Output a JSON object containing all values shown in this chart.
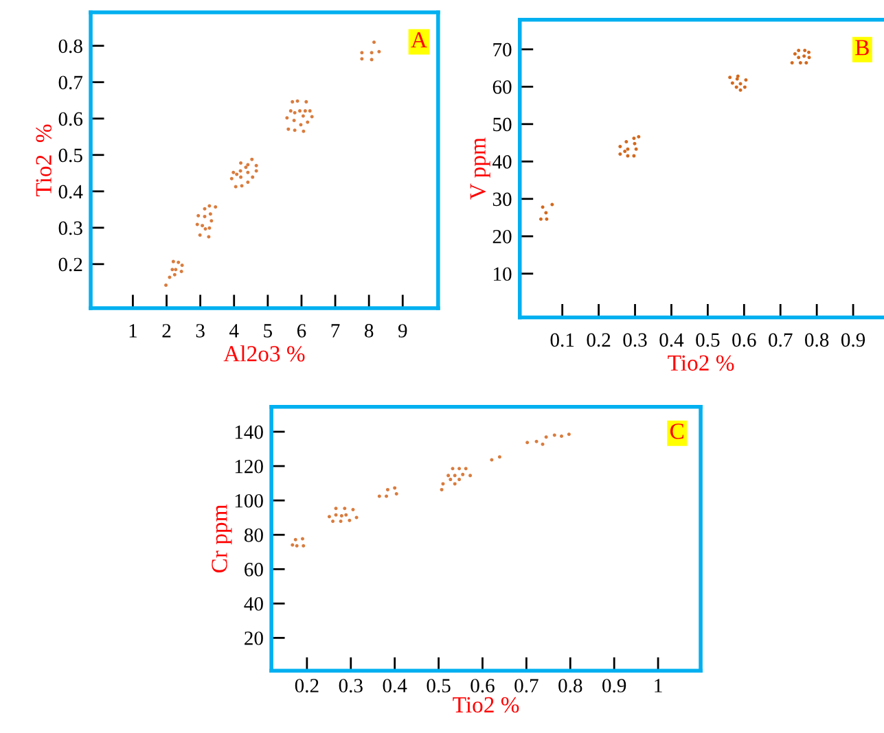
{
  "chart_data": [
    {
      "type": "scatter",
      "xlabel": "Al2o3 %",
      "ylabel": "Tio2  %",
      "annotations": [
        "A"
      ],
      "marker": "circle",
      "grid": false,
      "xlim": [
        -0.25,
        10.05
      ],
      "ylim": [
        0.079,
        0.892
      ],
      "xticks": [
        1,
        2,
        3,
        4,
        5,
        6,
        7,
        8,
        9
      ],
      "yticks": [
        0.2,
        0.3,
        0.4,
        0.5,
        0.6,
        0.7,
        0.8
      ],
      "series": [
        {
          "color": "#d97c3e",
          "x": [
            1.98,
            2.09,
            2.24,
            2.17,
            2.27,
            2.44,
            2.2,
            2.35,
            2.46,
            2.99,
            3.25,
            2.91,
            3.06,
            3.15,
            3.27,
            3.33,
            2.94,
            3.13,
            3.3,
            3.13,
            3.27,
            3.45,
            4.05,
            4.23,
            4.41,
            3.93,
            4.2,
            4.55,
            3.98,
            4.08,
            4.19,
            4.41,
            4.66,
            4.35,
            4.41,
            4.66,
            4.2,
            4.53,
            5.61,
            5.8,
            6.06,
            5.98,
            6.18,
            5.57,
            5.78,
            6.05,
            6.31,
            5.68,
            5.8,
            5.95,
            6.11,
            6.25,
            5.73,
            5.88,
            6.14,
            7.79,
            8.08,
            7.79,
            8.08,
            8.3,
            8.15
          ],
          "values": [
            0.142,
            0.164,
            0.171,
            0.185,
            0.185,
            0.18,
            0.207,
            0.205,
            0.197,
            0.28,
            0.275,
            0.309,
            0.306,
            0.297,
            0.299,
            0.319,
            0.333,
            0.331,
            0.338,
            0.352,
            0.36,
            0.357,
            0.413,
            0.415,
            0.425,
            0.435,
            0.439,
            0.439,
            0.452,
            0.447,
            0.456,
            0.452,
            0.456,
            0.466,
            0.473,
            0.471,
            0.478,
            0.488,
            0.571,
            0.568,
            0.565,
            0.583,
            0.59,
            0.602,
            0.595,
            0.607,
            0.605,
            0.621,
            0.616,
            0.621,
            0.621,
            0.621,
            0.646,
            0.648,
            0.646,
            0.764,
            0.762,
            0.781,
            0.781,
            0.784,
            0.81
          ]
        }
      ]
    },
    {
      "type": "scatter",
      "xlabel": "Tio2 %",
      "ylabel": "V ppm",
      "annotations": [
        "B"
      ],
      "marker": "circle",
      "grid": false,
      "xlim": [
        -0.017,
        0.98
      ],
      "ylim": [
        -1.7,
        77.9
      ],
      "xticks": [
        0.1,
        0.2,
        0.3,
        0.4,
        0.5,
        0.6,
        0.7,
        0.8,
        0.9
      ],
      "yticks": [
        10,
        20,
        30,
        40,
        50,
        60,
        70
      ],
      "series": [
        {
          "color": "#d2691e",
          "x": [
            0.041,
            0.057,
            0.055,
            0.046,
            0.072,
            0.259,
            0.28,
            0.297,
            0.272,
            0.28,
            0.259,
            0.303,
            0.299,
            0.276,
            0.297,
            0.31,
            0.561,
            0.583,
            0.581,
            0.605,
            0.568,
            0.59,
            0.579,
            0.602,
            0.59,
            0.732,
            0.755,
            0.771,
            0.75,
            0.765,
            0.779,
            0.74,
            0.75,
            0.767,
            0.778
          ],
          "values": [
            24.6,
            24.6,
            26.3,
            27.8,
            28.5,
            42.0,
            41.5,
            41.5,
            42.7,
            43.3,
            44.0,
            43.3,
            44.8,
            45.3,
            46.2,
            46.6,
            62.5,
            62.8,
            62.1,
            61.8,
            61.0,
            60.8,
            59.9,
            59.9,
            59.1,
            66.4,
            66.4,
            66.4,
            67.8,
            68.2,
            67.8,
            68.8,
            69.7,
            69.7,
            69.2
          ]
        }
      ]
    },
    {
      "type": "scatter",
      "xlabel": "Tio2 %",
      "ylabel": "Cr ppm",
      "annotations": [
        "C"
      ],
      "marker": "circle",
      "grid": false,
      "xlim": [
        0.119,
        1.097
      ],
      "ylim": [
        0.9,
        154.5
      ],
      "xticks": [
        0.2,
        0.3,
        0.4,
        0.5,
        0.6,
        0.7,
        0.8,
        0.9,
        1
      ],
      "yticks": [
        20,
        40,
        60,
        80,
        100,
        120,
        140
      ],
      "series": [
        {
          "color": "#d97c3e",
          "x": [
            0.167,
            0.177,
            0.192,
            0.174,
            0.19,
            0.251,
            0.259,
            0.277,
            0.297,
            0.313,
            0.266,
            0.279,
            0.289,
            0.266,
            0.286,
            0.305,
            0.365,
            0.381,
            0.384,
            0.4,
            0.404,
            0.507,
            0.51,
            0.537,
            0.527,
            0.547,
            0.522,
            0.537,
            0.555,
            0.572,
            0.532,
            0.547,
            0.562,
            0.621,
            0.639,
            0.702,
            0.723,
            0.737,
            0.745,
            0.764,
            0.78,
            0.797
          ],
          "values": [
            74.1,
            73.6,
            73.6,
            77.2,
            77.7,
            90.6,
            87.9,
            87.9,
            88.4,
            90.1,
            91.6,
            91.1,
            91.6,
            95.4,
            95.4,
            94.7,
            102.5,
            102.5,
            106.3,
            107.3,
            103.9,
            106.3,
            109.7,
            109.7,
            112.2,
            112.2,
            114.5,
            114.5,
            115.1,
            114.5,
            118.5,
            118.5,
            118.5,
            123.6,
            125.3,
            133.7,
            134.3,
            132.7,
            136.9,
            138.0,
            137.4,
            138.5
          ]
        }
      ]
    }
  ]
}
